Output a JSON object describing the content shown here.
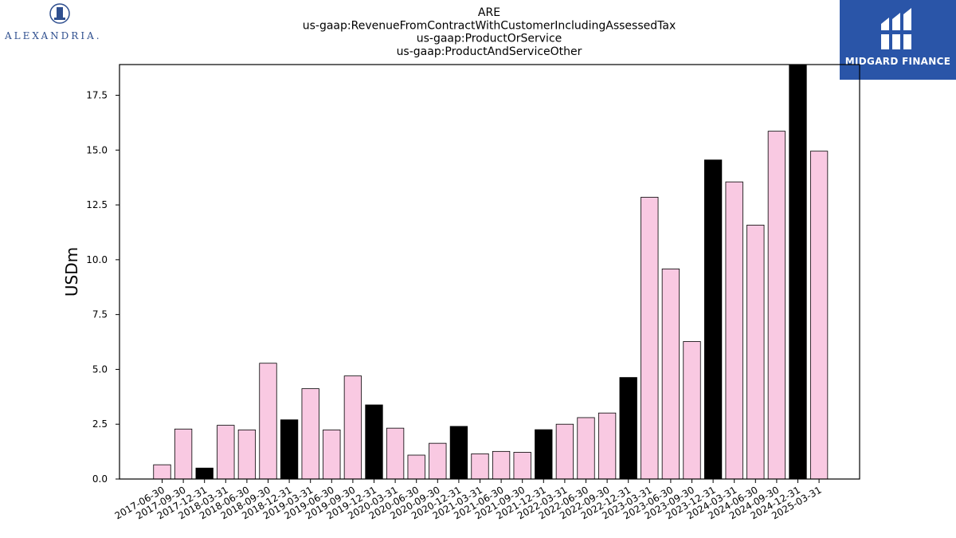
{
  "chart_data": {
    "type": "bar",
    "title_lines": [
      "ARE",
      "us-gaap:RevenueFromContractWithCustomerIncludingAssessedTax",
      "us-gaap:ProductOrService",
      "us-gaap:ProductAndServiceOther"
    ],
    "ylabel": "USDm",
    "xlabel": "",
    "ylim": [
      0,
      18.9
    ],
    "yticks": [
      0.0,
      2.5,
      5.0,
      7.5,
      10.0,
      12.5,
      15.0,
      17.5
    ],
    "ytick_labels": [
      "0.0",
      "2.5",
      "5.0",
      "7.5",
      "10.0",
      "12.5",
      "15.0",
      "17.5"
    ],
    "categories": [
      "2017-06-30",
      "2017-09-30",
      "2017-12-31",
      "2018-03-31",
      "2018-06-30",
      "2018-09-30",
      "2018-12-31",
      "2019-03-31",
      "2019-06-30",
      "2019-09-30",
      "2019-12-31",
      "2020-03-31",
      "2020-06-30",
      "2020-09-30",
      "2020-12-31",
      "2021-03-31",
      "2021-06-30",
      "2021-09-30",
      "2021-12-31",
      "2022-03-31",
      "2022-06-30",
      "2022-09-30",
      "2022-12-31",
      "2023-03-31",
      "2023-06-30",
      "2023-09-30",
      "2023-12-31",
      "2024-03-31",
      "2024-06-30",
      "2024-09-30",
      "2024-12-31",
      "2025-03-31"
    ],
    "values": [
      0.65,
      2.28,
      0.5,
      2.45,
      2.24,
      5.28,
      2.7,
      4.12,
      2.24,
      4.7,
      3.38,
      2.32,
      1.09,
      1.63,
      2.4,
      1.15,
      1.26,
      1.22,
      2.25,
      2.5,
      2.8,
      3.01,
      4.63,
      12.85,
      9.58,
      6.27,
      14.55,
      13.55,
      11.58,
      15.86,
      18.9,
      14.95
    ],
    "bar_colors": [
      "pink",
      "pink",
      "black",
      "pink",
      "pink",
      "pink",
      "black",
      "pink",
      "pink",
      "pink",
      "black",
      "pink",
      "pink",
      "pink",
      "black",
      "pink",
      "pink",
      "pink",
      "black",
      "pink",
      "pink",
      "pink",
      "black",
      "pink",
      "pink",
      "pink",
      "black",
      "pink",
      "pink",
      "pink",
      "black",
      "pink"
    ],
    "colors": {
      "pink": "#f9c9e2",
      "black": "#000000",
      "edge": "#000000"
    },
    "grid": false,
    "legend": "none"
  },
  "logos": {
    "left_text": "ALEXANDRIA.",
    "right_text": "MIDGARD FINANCE",
    "right_bg": "#2a55a8"
  }
}
